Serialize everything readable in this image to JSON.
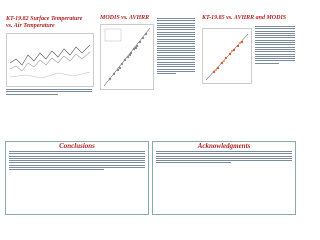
{
  "panels": [
    {
      "title": "KT-19.82 Surface Temperature vs. Air Temperature"
    },
    {
      "title": "MODIS vs. AVHRR"
    },
    {
      "title": "KT-19.85 vs. AVHRR and MODIS"
    }
  ],
  "conclusions": {
    "title": "Conclusions"
  },
  "acknowledgments": {
    "title": "Acknowledgments"
  }
}
